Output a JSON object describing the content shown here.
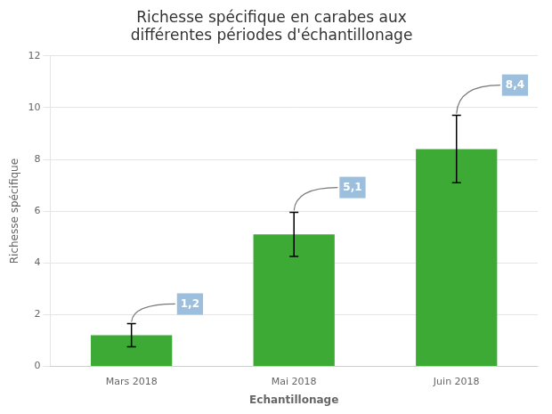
{
  "chart_data": {
    "type": "bar",
    "title": "Richesse spécifique en carabes aux\ndifférentes périodes d'échantillonage",
    "xlabel": "Echantillonage",
    "ylabel": "Richesse spécifique",
    "categories": [
      "Mars 2018",
      "Mai 2018",
      "Juin 2018"
    ],
    "values": [
      1.2,
      5.1,
      8.4
    ],
    "errors": [
      0.45,
      0.85,
      1.3
    ],
    "value_labels": [
      "1,2",
      "5,1",
      "8,4"
    ],
    "data_labels": true,
    "color": "#3daa35",
    "ylim": [
      0,
      12
    ],
    "yticks": [
      0,
      2,
      4,
      6,
      8,
      10,
      12
    ],
    "grid": true
  }
}
